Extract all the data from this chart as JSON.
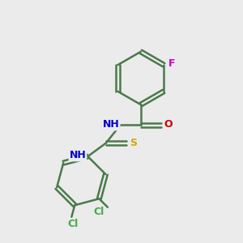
{
  "background_color": "#ebebeb",
  "bond_color": "#4a7a4a",
  "N_color": "#0000cc",
  "O_color": "#cc0000",
  "S_color": "#ccaa00",
  "F_color": "#cc00cc",
  "Cl_color": "#44aa44",
  "line_width": 1.8,
  "figsize": [
    3.0,
    3.0
  ],
  "dpi": 100,
  "xlim": [
    0,
    10
  ],
  "ylim": [
    0,
    10
  ]
}
